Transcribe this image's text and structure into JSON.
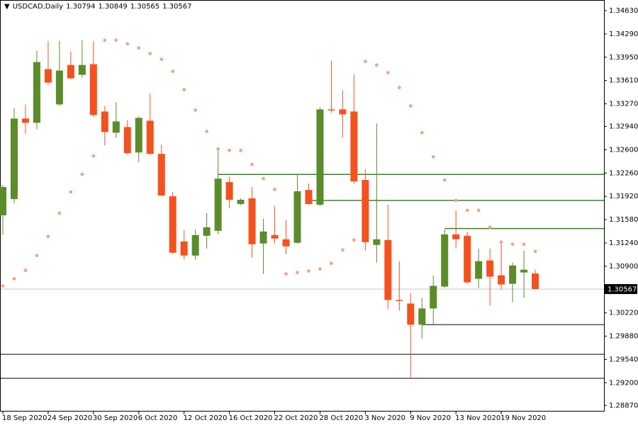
{
  "chart_data": {
    "type": "candlestick",
    "symbol": "USDCAD,Daily",
    "categories": [
      "18 Sep 2020",
      null,
      null,
      null,
      "24 Sep 2020",
      null,
      null,
      null,
      "30 Sep 2020",
      null,
      null,
      null,
      "6 Oct 2020",
      null,
      null,
      null,
      "12 Oct 2020",
      null,
      null,
      null,
      "16 Oct 2020",
      null,
      null,
      null,
      "22 Oct 2020",
      null,
      null,
      null,
      "28 Oct 2020",
      null,
      null,
      null,
      "3 Nov 2020",
      null,
      null,
      null,
      "9 Nov 2020",
      null,
      null,
      null,
      "13 Nov 2020",
      null,
      null,
      null,
      "19 Nov 2020",
      null,
      null,
      null
    ],
    "open": [
      1.31643,
      1.3188,
      1.33055,
      1.32993,
      1.33776,
      1.33261,
      1.33837,
      1.33693,
      1.33848,
      1.33158,
      1.32849,
      1.32931,
      1.3256,
      1.33024,
      1.3254,
      1.31921,
      1.31262,
      1.31056,
      1.31345,
      1.31417,
      1.32128,
      1.31808,
      1.31891,
      1.31232,
      1.31355,
      1.31293,
      1.31242,
      1.32014,
      1.31798,
      1.33189,
      1.33189,
      1.33158,
      1.32159,
      1.31211,
      1.31283,
      1.30408,
      1.30356,
      1.30047,
      1.30284,
      1.30603,
      1.31365,
      1.31345,
      1.30717,
      1.30984,
      1.30768,
      1.30644,
      1.30809,
      1.30794
    ],
    "high": [
      1.32086,
      1.33209,
      1.33261,
      1.34043,
      1.34188,
      1.34188,
      1.34033,
      1.34198,
      1.34188,
      1.3324,
      1.33292,
      1.33034,
      1.33086,
      1.33425,
      1.32674,
      1.31983,
      1.31427,
      1.31437,
      1.31675,
      1.32622,
      1.3221,
      1.31891,
      1.32056,
      1.31592,
      1.31777,
      1.31571,
      1.32231,
      1.32107,
      1.33219,
      1.33899,
      1.33467,
      1.33703,
      1.32313,
      1.32983,
      1.31798,
      1.30974,
      1.30511,
      1.30439,
      1.30768,
      1.31437,
      1.31716,
      1.31407,
      1.31159,
      1.31159,
      1.31232,
      1.30953,
      1.31129,
      1.30849
    ],
    "low": [
      1.31355,
      1.31819,
      1.32828,
      1.329,
      1.33549,
      1.3324,
      1.33631,
      1.33652,
      1.33086,
      1.32663,
      1.32776,
      1.32529,
      1.32416,
      1.32529,
      1.31921,
      1.31077,
      1.30995,
      1.30995,
      1.31159,
      1.31365,
      1.31747,
      1.31788,
      1.31026,
      1.30789,
      1.31232,
      1.31077,
      1.31232,
      1.31798,
      1.31777,
      1.33137,
      1.32776,
      1.32107,
      1.31129,
      1.30953,
      1.30274,
      1.30253,
      1.29275,
      1.29841,
      1.30047,
      1.30583,
      1.31159,
      1.30644,
      1.30583,
      1.30325,
      1.30562,
      1.30376,
      1.30439,
      1.30565
    ],
    "close": [
      1.32056,
      1.33055,
      1.32993,
      1.33879,
      1.3358,
      1.33755,
      1.33642,
      1.33837,
      1.33106,
      1.32859,
      1.33013,
      1.3255,
      1.33065,
      1.3254,
      1.31932,
      1.31098,
      1.31056,
      1.31355,
      1.31469,
      1.32179,
      1.3187,
      1.3187,
      1.31221,
      1.31407,
      1.31304,
      1.3119,
      1.31994,
      1.31808,
      1.33189,
      1.33178,
      1.33116,
      1.32138,
      1.31252,
      1.31293,
      1.30408,
      1.30397,
      1.30047,
      1.30284,
      1.30614,
      1.31365,
      1.31293,
      1.30665,
      1.30974,
      1.30748,
      1.30634,
      1.30912,
      1.3085,
      1.30567
    ],
    "sar": [
      1.30614,
      1.30717,
      1.3084,
      1.31056,
      1.31335,
      1.31675,
      1.31984,
      1.32241,
      1.32509,
      1.34198,
      1.34198,
      1.34146,
      1.34085,
      1.34002,
      1.3392,
      1.33745,
      1.33477,
      1.33178,
      1.32869,
      1.32612,
      1.32591,
      1.32591,
      1.32385,
      1.32179,
      1.32021,
      1.30789,
      1.30809,
      1.3083,
      1.30861,
      1.30944,
      1.31139,
      1.31283,
      1.33889,
      1.33837,
      1.33724,
      1.33508,
      1.3324,
      1.32849,
      1.32498,
      1.32159,
      1.3186,
      1.31716,
      1.31716,
      1.31469,
      1.31252,
      1.31221,
      1.31221,
      1.31118
    ],
    "up_color": "#5b8c2a",
    "down_color": "#f4511e",
    "sar_color": "#f4a582",
    "levels": [
      {
        "value": 1.3224,
        "from": 19,
        "color": "#2e8b1e"
      },
      {
        "value": 1.3186,
        "from": 27,
        "color": "#2e8b1e"
      },
      {
        "value": 1.3145,
        "from": 39,
        "color": "#2e8b1e"
      },
      {
        "value": 1.30047,
        "from": 37,
        "color": "#555555"
      },
      {
        "value": 1.29615,
        "from": 0,
        "color": "#555555"
      },
      {
        "value": 1.29265,
        "from": 0,
        "color": "#555555"
      }
    ],
    "ylim": [
      1.2878,
      1.34785
    ],
    "yticks": [
      {
        "value": 1.3463,
        "label": "1.34630"
      },
      {
        "value": 1.3429,
        "label": "1.34290"
      },
      {
        "value": 1.3395,
        "label": "1.33950"
      },
      {
        "value": 1.3361,
        "label": "1.33610"
      },
      {
        "value": 1.3327,
        "label": "1.33270"
      },
      {
        "value": 1.3294,
        "label": "1.32940"
      },
      {
        "value": 1.326,
        "label": "1.32600"
      },
      {
        "value": 1.3226,
        "label": "1.32260"
      },
      {
        "value": 1.3192,
        "label": "1.31920"
      },
      {
        "value": 1.3158,
        "label": "1.31580"
      },
      {
        "value": 1.3124,
        "label": "1.31240"
      },
      {
        "value": 1.309,
        "label": "1.30900"
      },
      {
        "value": 1.3022,
        "label": "1.30220"
      },
      {
        "value": 1.2988,
        "label": "1.29880"
      },
      {
        "value": 1.2954,
        "label": "1.29540"
      },
      {
        "value": 1.292,
        "label": "1.29200"
      },
      {
        "value": 1.2887,
        "label": "1.28870"
      }
    ]
  }
}
